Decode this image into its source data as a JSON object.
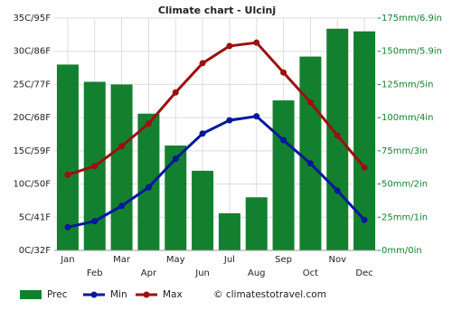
{
  "chart_data": {
    "type": "combo",
    "title": "Climate chart - Ulcinj",
    "categories": [
      "Jan",
      "Feb",
      "Mar",
      "Apr",
      "May",
      "Jun",
      "Jul",
      "Aug",
      "Sep",
      "Oct",
      "Nov",
      "Dec"
    ],
    "series": [
      {
        "name": "Prec",
        "type": "bar",
        "axis": "y2",
        "color": "#13802f",
        "values": [
          140,
          127,
          125,
          103,
          79,
          60,
          28,
          40,
          113,
          146,
          167,
          165
        ]
      },
      {
        "name": "Min",
        "type": "line",
        "color": "#00189c",
        "values": [
          3.5,
          4.4,
          6.7,
          9.5,
          13.8,
          17.6,
          19.6,
          20.2,
          16.6,
          13.1,
          9.0,
          4.6
        ]
      },
      {
        "name": "Max",
        "type": "line",
        "color": "#9c1010",
        "values": [
          11.4,
          12.7,
          15.7,
          19.1,
          23.8,
          28.2,
          30.8,
          31.3,
          26.8,
          22.3,
          17.3,
          12.5
        ]
      }
    ],
    "ylim": [
      0,
      35
    ],
    "yticks": [
      {
        "value": 0,
        "label": "0C/32F"
      },
      {
        "value": 5,
        "label": "5C/41F"
      },
      {
        "value": 10,
        "label": "10C/50F"
      },
      {
        "value": 15,
        "label": "15C/59F"
      },
      {
        "value": 20,
        "label": "20C/68F"
      },
      {
        "value": 25,
        "label": "25C/77F"
      },
      {
        "value": 30,
        "label": "30C/86F"
      },
      {
        "value": 35,
        "label": "35C/95F"
      }
    ],
    "y2lim": [
      0,
      175
    ],
    "y2ticks": [
      {
        "value": 0,
        "label": "0mm/0in"
      },
      {
        "value": 25,
        "label": "25mm/1in"
      },
      {
        "value": 50,
        "label": "50mm/2in"
      },
      {
        "value": 75,
        "label": "75mm/3in"
      },
      {
        "value": 100,
        "label": "100mm/4in"
      },
      {
        "value": 125,
        "label": "125mm/5in"
      },
      {
        "value": 150,
        "label": "150mm/5.9in"
      },
      {
        "value": 175,
        "label": "175mm/6.9in"
      }
    ],
    "grid": true,
    "source": "© climatestotravel.com"
  }
}
